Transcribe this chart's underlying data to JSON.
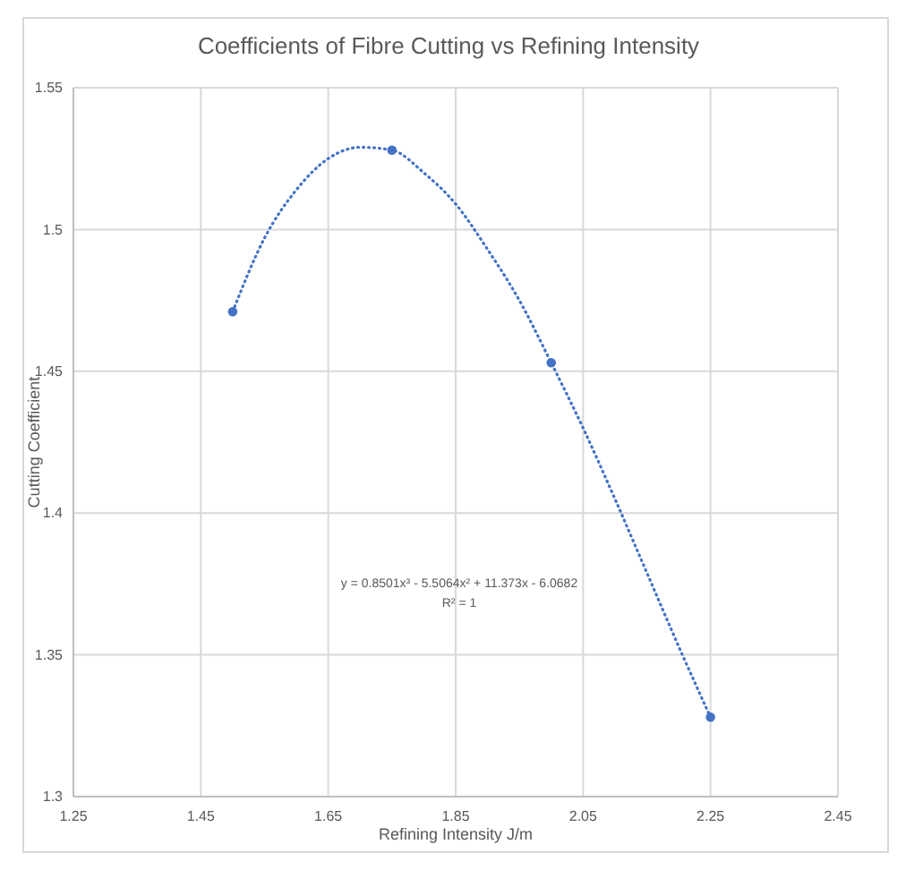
{
  "chart_data": {
    "type": "scatter",
    "title": "Coefficients of Fibre Cutting vs Refining Intensity",
    "xlabel": "Refining Intensity J/m",
    "ylabel": "Cutting Coefficient",
    "xlim": [
      1.25,
      2.45
    ],
    "xticks": [
      1.25,
      1.45,
      1.65,
      1.85,
      2.05,
      2.25,
      2.45
    ],
    "ylim": [
      1.3,
      1.55
    ],
    "yticks": [
      1.3,
      1.35,
      1.4,
      1.45,
      1.5,
      1.55
    ],
    "grid": true,
    "series": [
      {
        "color": "#4472c4",
        "marker": "circle",
        "x": [
          1.5,
          1.75,
          2.0,
          2.25
        ],
        "values": [
          1.471,
          1.528,
          1.453,
          1.328
        ]
      },
      {
        "type": "line",
        "color": "#4472c4",
        "line_style": "dotted",
        "marker": "none",
        "x": [
          1.5,
          1.55,
          1.6,
          1.65,
          1.7,
          1.75,
          1.8,
          1.85,
          1.9,
          1.95,
          2.0,
          2.05,
          2.1,
          2.15,
          2.2,
          2.25
        ],
        "values": [
          1.471,
          1.497,
          1.514,
          1.525,
          1.529,
          1.528,
          1.52,
          1.509,
          1.493,
          1.475,
          1.453,
          1.43,
          1.405,
          1.379,
          1.353,
          1.328
        ]
      }
    ],
    "annotations": [
      "y = 0.8501x³ - 5.5064x² + 11.373x - 6.0682",
      "R² = 1"
    ]
  }
}
